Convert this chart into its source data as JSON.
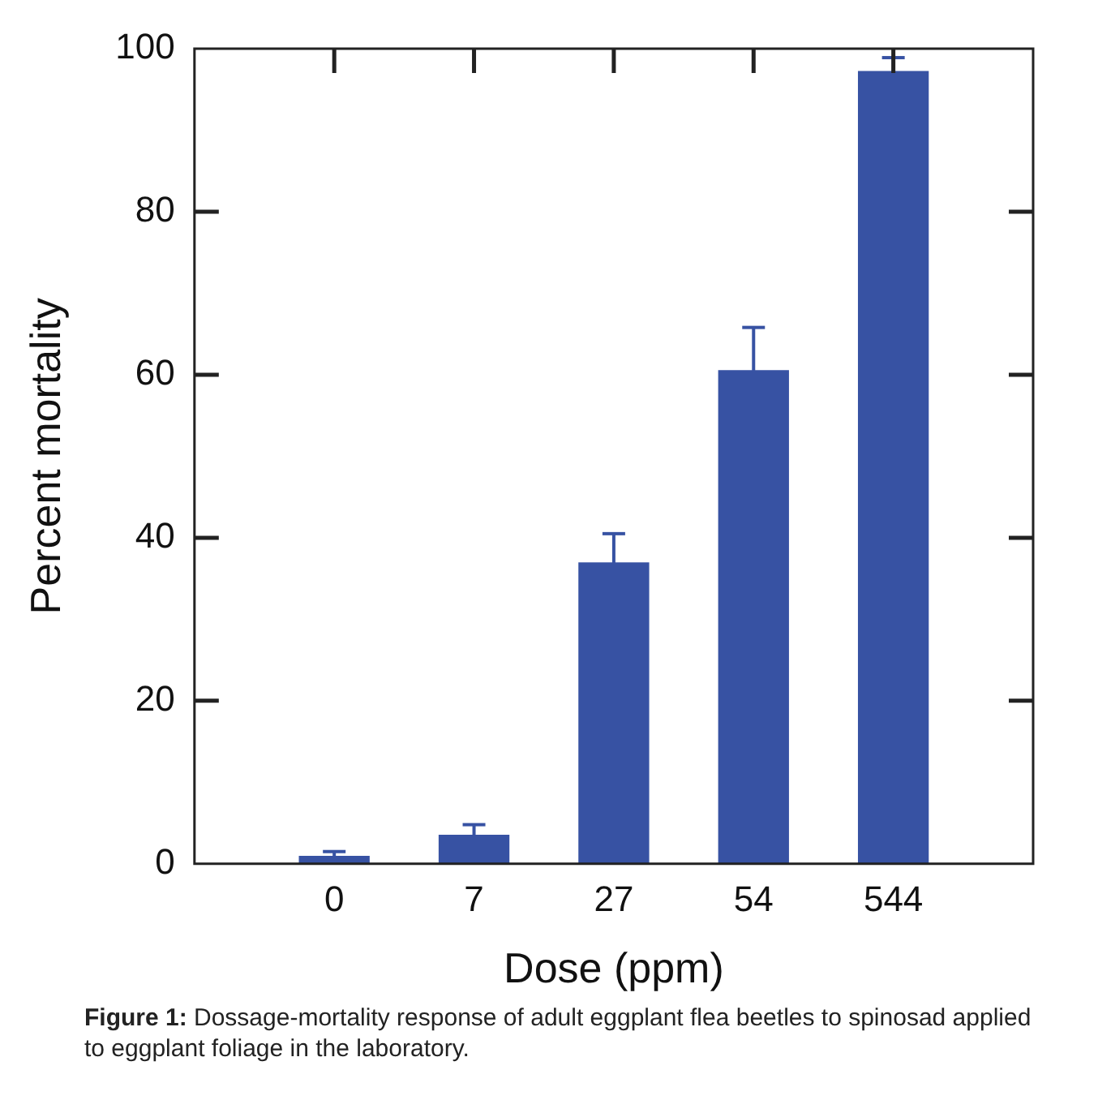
{
  "chart_data": {
    "type": "bar",
    "xlabel": "Dose (ppm)",
    "ylabel": "Percent mortality",
    "categories": [
      "0",
      "7",
      "27",
      "54",
      "544"
    ],
    "values": [
      0.9,
      3.5,
      36.9,
      60.5,
      97.2
    ],
    "errors": [
      [
        0.9,
        1.5
      ],
      [
        3.5,
        4.8
      ],
      [
        36.9,
        40.5
      ],
      [
        60.5,
        65.8
      ],
      [
        97.2,
        98.9
      ]
    ],
    "color": "#3752a3",
    "ylim": [
      0,
      100
    ],
    "yticks": [
      0,
      20,
      40,
      60,
      80,
      100
    ],
    "grid": false,
    "legend": false,
    "annotations": [
      "Figure 1: Dossage-mortality response of adult eggplant flea beetles to spinosad applied to eggplant foliage in the laboratory."
    ]
  }
}
